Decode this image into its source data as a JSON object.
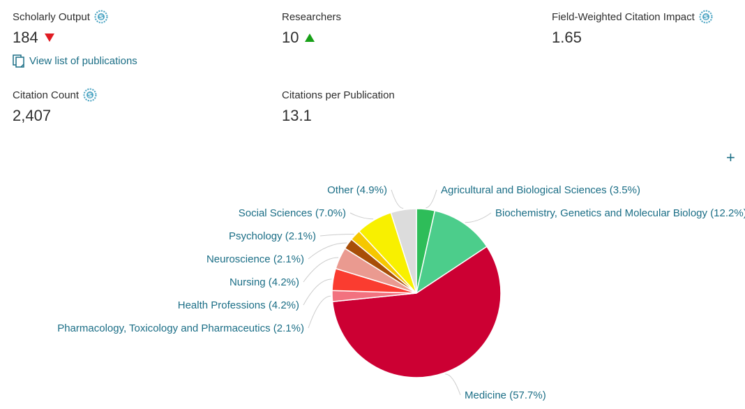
{
  "metrics": {
    "scholarly_output": {
      "label": "Scholarly Output",
      "value": "184",
      "trend": "down"
    },
    "researchers": {
      "label": "Researchers",
      "value": "10",
      "trend": "up"
    },
    "fwci": {
      "label": "Field-Weighted Citation Impact",
      "value": "1.65"
    },
    "citation_count": {
      "label": "Citation Count",
      "value": "2,407"
    },
    "citations_per_publication": {
      "label": "Citations per Publication",
      "value": "13.1"
    }
  },
  "view_publications": {
    "label": "View list of publications",
    "icon": "document-icon"
  },
  "icons": {
    "info": "snowball-metric-icon",
    "add": "plus-icon"
  },
  "add_button": {
    "label": "+"
  },
  "colors": {
    "link": "#1b6e86",
    "down": "#e01b22",
    "up": "#18a018"
  },
  "chart_data": {
    "type": "pie",
    "title": "",
    "slices": [
      {
        "label": "Agricultural and Biological Sciences (3.5%)",
        "value": 3.5,
        "color": "#2ebd59"
      },
      {
        "label": "Biochemistry, Genetics and Molecular Biology (12.2%)",
        "value": 12.2,
        "color": "#4ccd8b"
      },
      {
        "label": "Medicine (57.7%)",
        "value": 57.7,
        "color": "#cc0033"
      },
      {
        "label": "Pharmacology, Toxicology and Pharmaceutics (2.1%)",
        "value": 2.1,
        "color": "#f2727f"
      },
      {
        "label": "Health Professions (4.2%)",
        "value": 4.2,
        "color": "#fa3c30"
      },
      {
        "label": "Nursing (4.2%)",
        "value": 4.2,
        "color": "#ea9a90"
      },
      {
        "label": "Neuroscience (2.1%)",
        "value": 2.1,
        "color": "#a84e08"
      },
      {
        "label": "Psychology (2.1%)",
        "value": 2.1,
        "color": "#f6c700"
      },
      {
        "label": "Social Sciences (7.0%)",
        "value": 7.0,
        "color": "#f8f000"
      },
      {
        "label": "Other (4.9%)",
        "value": 4.9,
        "color": "#dcdcdc"
      }
    ]
  }
}
